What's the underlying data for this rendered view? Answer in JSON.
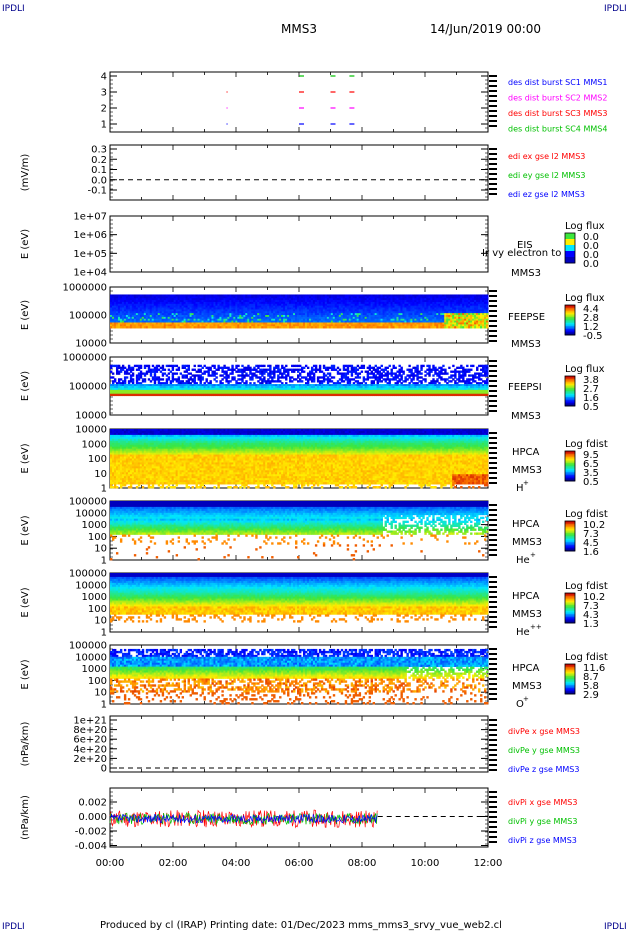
{
  "corner_label": "IPDLI",
  "header": {
    "spacecraft": "MMS3",
    "date": "14/Jun/2019 00:00"
  },
  "footer": "Produced by cl (IRAP)   Printing date: 01/Dec/2023   mms_mms3_srvy_vue_web2.cl",
  "colors": {
    "blue": "#0000ff",
    "red": "#ff0000",
    "green": "#00c000",
    "magenta": "#ff00ff",
    "axis": "#000000"
  },
  "chart_data": [
    {
      "type": "scatter",
      "ylabel": "",
      "yticks": [
        "4",
        "3",
        "2",
        "1"
      ],
      "legend": [
        {
          "name": "des dist burst SC1 MMS1",
          "color": "#0000ff"
        },
        {
          "name": "des dist burst SC2 MMS2",
          "color": "#ff00ff"
        },
        {
          "name": "des dist burst SC3 MMS3",
          "color": "#ff0000"
        },
        {
          "name": "des dist burst SC4 MMS4",
          "color": "#00c000"
        }
      ]
    },
    {
      "type": "line",
      "ylabel": "(mV/m)",
      "yticks": [
        "0.3",
        "0.2",
        "0.1",
        "0.0",
        "-0.1"
      ],
      "legend": [
        {
          "name": "edi ex gse l2 MMS3",
          "color": "#ff0000"
        },
        {
          "name": "edi ey gse l2 MMS3",
          "color": "#00c000"
        },
        {
          "name": "edi ez gse l2 MMS3",
          "color": "#0000ff"
        }
      ]
    },
    {
      "type": "heatmap",
      "ylabel": "E (eV)",
      "yticks": [
        "1e+07",
        "1e+06",
        "1e+05",
        "1e+04"
      ],
      "instrument": "EIS",
      "spacecraft": "MMS3",
      "overlay": "Ir vy electron to",
      "cbar_title": "Log flux",
      "cbar_ticks": [
        "0.0",
        "0.0",
        "0.0",
        "0.0"
      ],
      "empty": true
    },
    {
      "type": "heatmap",
      "ylabel": "E (eV)",
      "yticks": [
        "1000000",
        "100000",
        "10000"
      ],
      "instrument": "FEEPSE",
      "spacecraft": "MMS3",
      "cbar_title": "Log flux",
      "cbar_ticks": [
        "4.4",
        "2.8",
        "1.2",
        "-0.5"
      ]
    },
    {
      "type": "heatmap",
      "ylabel": "E (eV)",
      "yticks": [
        "1000000",
        "100000",
        "10000"
      ],
      "instrument": "FEEPSI",
      "spacecraft": "MMS3",
      "cbar_title": "Log flux",
      "cbar_ticks": [
        "3.8",
        "2.7",
        "1.6",
        "0.5"
      ]
    },
    {
      "type": "heatmap",
      "ylabel": "E (eV)",
      "yticks": [
        "10000",
        "1000",
        "100",
        "10",
        "1"
      ],
      "instrument": "HPCA",
      "spacecraft": "MMS3",
      "species": "H",
      "species_sup": "+",
      "cbar_title": "Log fdist",
      "cbar_ticks": [
        "9.5",
        "6.5",
        "3.5",
        "0.5"
      ]
    },
    {
      "type": "heatmap",
      "ylabel": "E (eV)",
      "yticks": [
        "100000",
        "10000",
        "1000",
        "100",
        "10",
        "1"
      ],
      "instrument": "HPCA",
      "spacecraft": "MMS3",
      "species": "He",
      "species_sup": "+",
      "cbar_title": "Log fdist",
      "cbar_ticks": [
        "10.2",
        "7.3",
        "4.5",
        "1.6"
      ]
    },
    {
      "type": "heatmap",
      "ylabel": "E (eV)",
      "yticks": [
        "100000",
        "10000",
        "1000",
        "100",
        "10",
        "1"
      ],
      "instrument": "HPCA",
      "spacecraft": "MMS3",
      "species": "He",
      "species_sup": "++",
      "cbar_title": "Log fdist",
      "cbar_ticks": [
        "10.2",
        "7.3",
        "4.3",
        "1.3"
      ]
    },
    {
      "type": "heatmap",
      "ylabel": "E (eV)",
      "yticks": [
        "100000",
        "10000",
        "1000",
        "100",
        "10",
        "1"
      ],
      "instrument": "HPCA",
      "spacecraft": "MMS3",
      "species": "O",
      "species_sup": "+",
      "cbar_title": "Log fdist",
      "cbar_ticks": [
        "11.6",
        "8.7",
        "5.8",
        "2.9"
      ]
    },
    {
      "type": "line",
      "ylabel": "(nPa/km)",
      "yticks": [
        "1e+21",
        "8e+20",
        "6e+20",
        "4e+20",
        "2e+20",
        "0"
      ],
      "legend": [
        {
          "name": "divPe x gse MMS3",
          "color": "#ff0000"
        },
        {
          "name": "divPe y gse MMS3",
          "color": "#00c000"
        },
        {
          "name": "divPe z gse MMS3",
          "color": "#0000ff"
        }
      ]
    },
    {
      "type": "line",
      "ylabel": "(nPa/km)",
      "yticks": [
        "0.002",
        "0.000",
        "-0.002",
        "-0.004"
      ],
      "ylim": [
        -0.004,
        0.003
      ],
      "data_end_hour": 8.5,
      "legend": [
        {
          "name": "divPi x gse MMS3",
          "color": "#ff0000"
        },
        {
          "name": "divPi y gse MMS3",
          "color": "#00c000"
        },
        {
          "name": "divPi z gse MMS3",
          "color": "#0000ff"
        }
      ]
    }
  ],
  "xaxis": {
    "labels": [
      "00:00",
      "02:00",
      "04:00",
      "06:00",
      "08:00",
      "10:00",
      "12:00"
    ],
    "range_hours": [
      0,
      12
    ]
  }
}
